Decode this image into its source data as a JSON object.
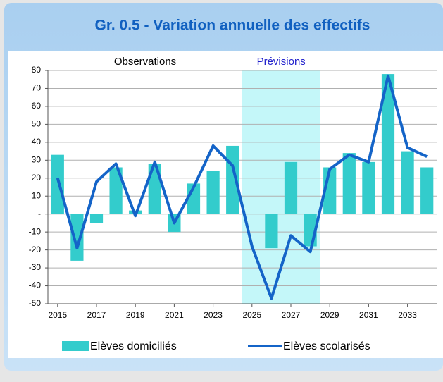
{
  "chart_data": {
    "type": "bar_line",
    "title": "Gr. 0.5 - Variation annuelle des effectifs",
    "annotations": [
      {
        "text": "Observations",
        "color": "#000000"
      },
      {
        "text": "Prévisions",
        "color": "#2222cc"
      }
    ],
    "x": [
      2015,
      2016,
      2017,
      2018,
      2019,
      2020,
      2021,
      2022,
      2023,
      2024,
      2025,
      2026,
      2027,
      2028,
      2029,
      2030,
      2031,
      2032,
      2033,
      2034
    ],
    "xlim": [
      2014.5,
      2034.5
    ],
    "xticks": [
      2015,
      2017,
      2019,
      2021,
      2023,
      2025,
      2027,
      2029,
      2031,
      2033
    ],
    "ylim": [
      -50,
      80
    ],
    "yticks": [
      -50,
      -40,
      -30,
      -20,
      -10,
      {
        "value": 0,
        "label": "-"
      },
      10,
      20,
      30,
      40,
      50,
      60,
      70,
      80
    ],
    "grid": true,
    "shade": [
      2024.5,
      2028.5
    ],
    "shade_color": "#c4f7f9",
    "series": [
      {
        "name": "Elèves domiciliés",
        "kind": "bar",
        "color": "#33cccc",
        "values": [
          33,
          -26,
          -5,
          26,
          2,
          28,
          -10,
          17,
          24,
          38,
          0,
          -19,
          29,
          -18,
          26,
          34,
          29,
          78,
          35,
          26
        ]
      },
      {
        "name": "Elèves scolarisés",
        "kind": "line",
        "color": "#1464c8",
        "values": [
          20,
          -19,
          18,
          28,
          -1,
          29,
          -5,
          15,
          38,
          27,
          -18,
          -47,
          -12,
          -21,
          25,
          33,
          29,
          77,
          37,
          32
        ]
      }
    ]
  }
}
